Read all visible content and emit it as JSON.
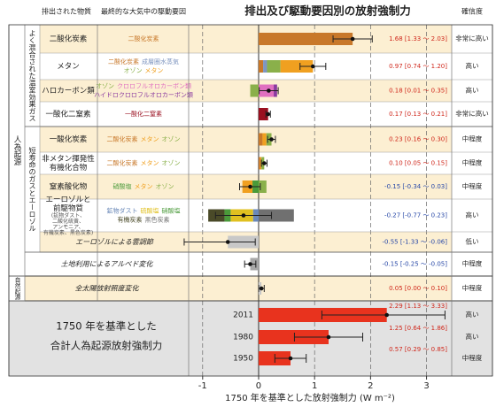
{
  "chart_data": {
    "type": "forcing",
    "title": "排出及び駆動要因別の放射強制力",
    "headers": {
      "emitted": "排出された物質",
      "driver": "最終的な大気中の駆動要因",
      "confidence": "確信度"
    },
    "x_label": "1750 年を基準とした放射強制力 (W m⁻²)",
    "xlim": [
      -1.25,
      3.45
    ],
    "xticks": [
      -1,
      0,
      1,
      2,
      3
    ],
    "groups": [
      {
        "label": "人為起源",
        "subgroups": [
          {
            "label": "よく混合された温室効果ガス",
            "rows": [
              {
                "emitted": [
                  "二酸化炭素"
                ],
                "drivers": [
                  {
                    "name": "二酸化炭素",
                    "color": "#c8782a"
                  }
                ],
                "components": [
                  1.68
                ],
                "value": 1.68,
                "range": [
                  1.33,
                  2.03
                ],
                "value_label": "1.68 [1.33 ～ 2.03]",
                "confidence": "非常に高い"
              },
              {
                "emitted": [
                  "メタン"
                ],
                "drivers": [
                  {
                    "name": "二酸化炭素",
                    "color": "#c8782a"
                  },
                  {
                    "name": "成層圏水蒸気",
                    "color": "#7f96c0"
                  },
                  {
                    "name": "オゾン",
                    "color": "#8ab04a"
                  },
                  {
                    "name": "メタン",
                    "color": "#f0a020"
                  }
                ],
                "components": [
                  0.08,
                  0.07,
                  0.24,
                  0.58
                ],
                "value": 0.97,
                "range": [
                  0.74,
                  1.2
                ],
                "value_label": "0.97 [0.74 ～ 1.20]",
                "confidence": "高い"
              },
              {
                "emitted": [
                  "ハロカーボン類"
                ],
                "drivers": [
                  {
                    "name": "オゾン",
                    "color": "#8ab04a"
                  },
                  {
                    "name": "クロロフルオロカーボン類",
                    "color": "#e070c0"
                  },
                  {
                    "name": "ハイドロクロロフルオロカーボン類",
                    "color": "#8a3aa0"
                  }
                ],
                "components": [
                  -0.15,
                  0.27,
                  0.06
                ],
                "value": 0.18,
                "range": [
                  0.01,
                  0.35
                ],
                "value_label": "0.18 [0.01 ～ 0.35]",
                "confidence": "高い"
              },
              {
                "emitted": [
                  "一酸化二窒素"
                ],
                "drivers": [
                  {
                    "name": "一酸化二窒素",
                    "color": "#9a1020"
                  }
                ],
                "components": [
                  0.17
                ],
                "value": 0.17,
                "range": [
                  0.13,
                  0.21
                ],
                "value_label": "0.17 [0.13 ～ 0.21]",
                "confidence": "非常に高い"
              }
            ]
          },
          {
            "label": "短寿命のガスとエーロゾル",
            "rows": [
              {
                "emitted": [
                  "一酸化炭素"
                ],
                "drivers": [
                  {
                    "name": "二酸化炭素",
                    "color": "#c8782a"
                  },
                  {
                    "name": "メタン",
                    "color": "#f0a020"
                  },
                  {
                    "name": "オゾン",
                    "color": "#8ab04a"
                  }
                ],
                "components": [
                  0.07,
                  0.07,
                  0.09
                ],
                "value": 0.23,
                "range": [
                  0.16,
                  0.3
                ],
                "value_label": "0.23 [0.16 ～ 0.30]",
                "confidence": "中程度"
              },
              {
                "emitted": [
                  "非メタン揮発性",
                  "有機化合物"
                ],
                "drivers": [
                  {
                    "name": "二酸化炭素",
                    "color": "#c8782a"
                  },
                  {
                    "name": "メタン",
                    "color": "#f0a020"
                  },
                  {
                    "name": "オゾン",
                    "color": "#8ab04a"
                  }
                ],
                "components": [
                  0.03,
                  0.02,
                  0.05
                ],
                "value": 0.1,
                "range": [
                  0.05,
                  0.15
                ],
                "value_label": "0.10 [0.05 ～ 0.15]",
                "confidence": "中程度"
              },
              {
                "emitted": [
                  "窒素酸化物"
                ],
                "drivers": [
                  {
                    "name": "硝酸塩",
                    "color": "#4a9a3a"
                  },
                  {
                    "name": "メタン",
                    "color": "#f0a020"
                  },
                  {
                    "name": "オゾン",
                    "color": "#8ab04a"
                  }
                ],
                "components": [
                  -0.11,
                  -0.18,
                  0.14
                ],
                "value": -0.15,
                "range": [
                  -0.34,
                  0.03
                ],
                "value_label": "-0.15 [-0.34 ～ 0.03]",
                "confidence": "中程度"
              },
              {
                "emitted": [
                  "エーロゾルと",
                  "前駆物質"
                ],
                "note": [
                  "(鉱物ダスト、",
                  "二酸化硫黄、",
                  "アンモニア、",
                  "有機炭素、黒色炭素)"
                ],
                "drivers": [
                  {
                    "name": "鉱物ダスト",
                    "color": "#6a88b8"
                  },
                  {
                    "name": "硫酸塩",
                    "color": "#e0c020"
                  },
                  {
                    "name": "硝酸塩",
                    "color": "#4a9a3a"
                  },
                  {
                    "name": "有機炭素",
                    "color": "#4a4a28"
                  },
                  {
                    "name": "黒色炭素",
                    "color": "#707070"
                  }
                ],
                "components": [
                  -0.1,
                  -0.4,
                  -0.11,
                  -0.29,
                  0.63
                ],
                "value": -0.27,
                "range": [
                  -0.77,
                  0.23
                ],
                "value_label": "-0.27 [-0.77 ～ 0.23]",
                "confidence": "高い"
              },
              {
                "label": "エーロゾルによる雲調節",
                "color": "#c8c8c8",
                "value": -0.55,
                "range": [
                  -1.33,
                  -0.06
                ],
                "value_label": "-0.55 [-1.33 ～ -0.06]",
                "confidence": "低い"
              }
            ]
          },
          {
            "rows": [
              {
                "label": "土地利用によるアルベド変化",
                "color": "#a8a8a8",
                "value": -0.15,
                "range": [
                  -0.25,
                  -0.05
                ],
                "value_label": "-0.15 [-0.25 ～ -0.05]",
                "confidence": "中程度"
              }
            ]
          }
        ]
      },
      {
        "label": "自然起源",
        "subgroups": [
          {
            "rows": [
              {
                "label": "全太陽放射照度変化",
                "color": "#c8c8c8",
                "value": 0.05,
                "range": [
                  0.0,
                  0.1
                ],
                "value_label": "0.05 [0.00 ～ 0.10]",
                "confidence": "中程度"
              }
            ]
          }
        ]
      }
    ],
    "totals": {
      "title": [
        "1750 年を基準とした",
        "合計人為起源放射強制力"
      ],
      "color": "#e8331e",
      "rows": [
        {
          "year": "2011",
          "value": 2.29,
          "range": [
            1.13,
            3.33
          ],
          "value_label": "2.29 [1.13 ～ 3.33]",
          "confidence": "高い"
        },
        {
          "year": "1980",
          "value": 1.25,
          "range": [
            0.64,
            1.86
          ],
          "value_label": "1.25 [0.64 ～ 1.86]",
          "confidence": "高い"
        },
        {
          "year": "1950",
          "value": 0.57,
          "range": [
            0.29,
            0.85
          ],
          "value_label": "0.57 [0.29 ～ 0.85]",
          "confidence": "中程度"
        }
      ]
    }
  }
}
